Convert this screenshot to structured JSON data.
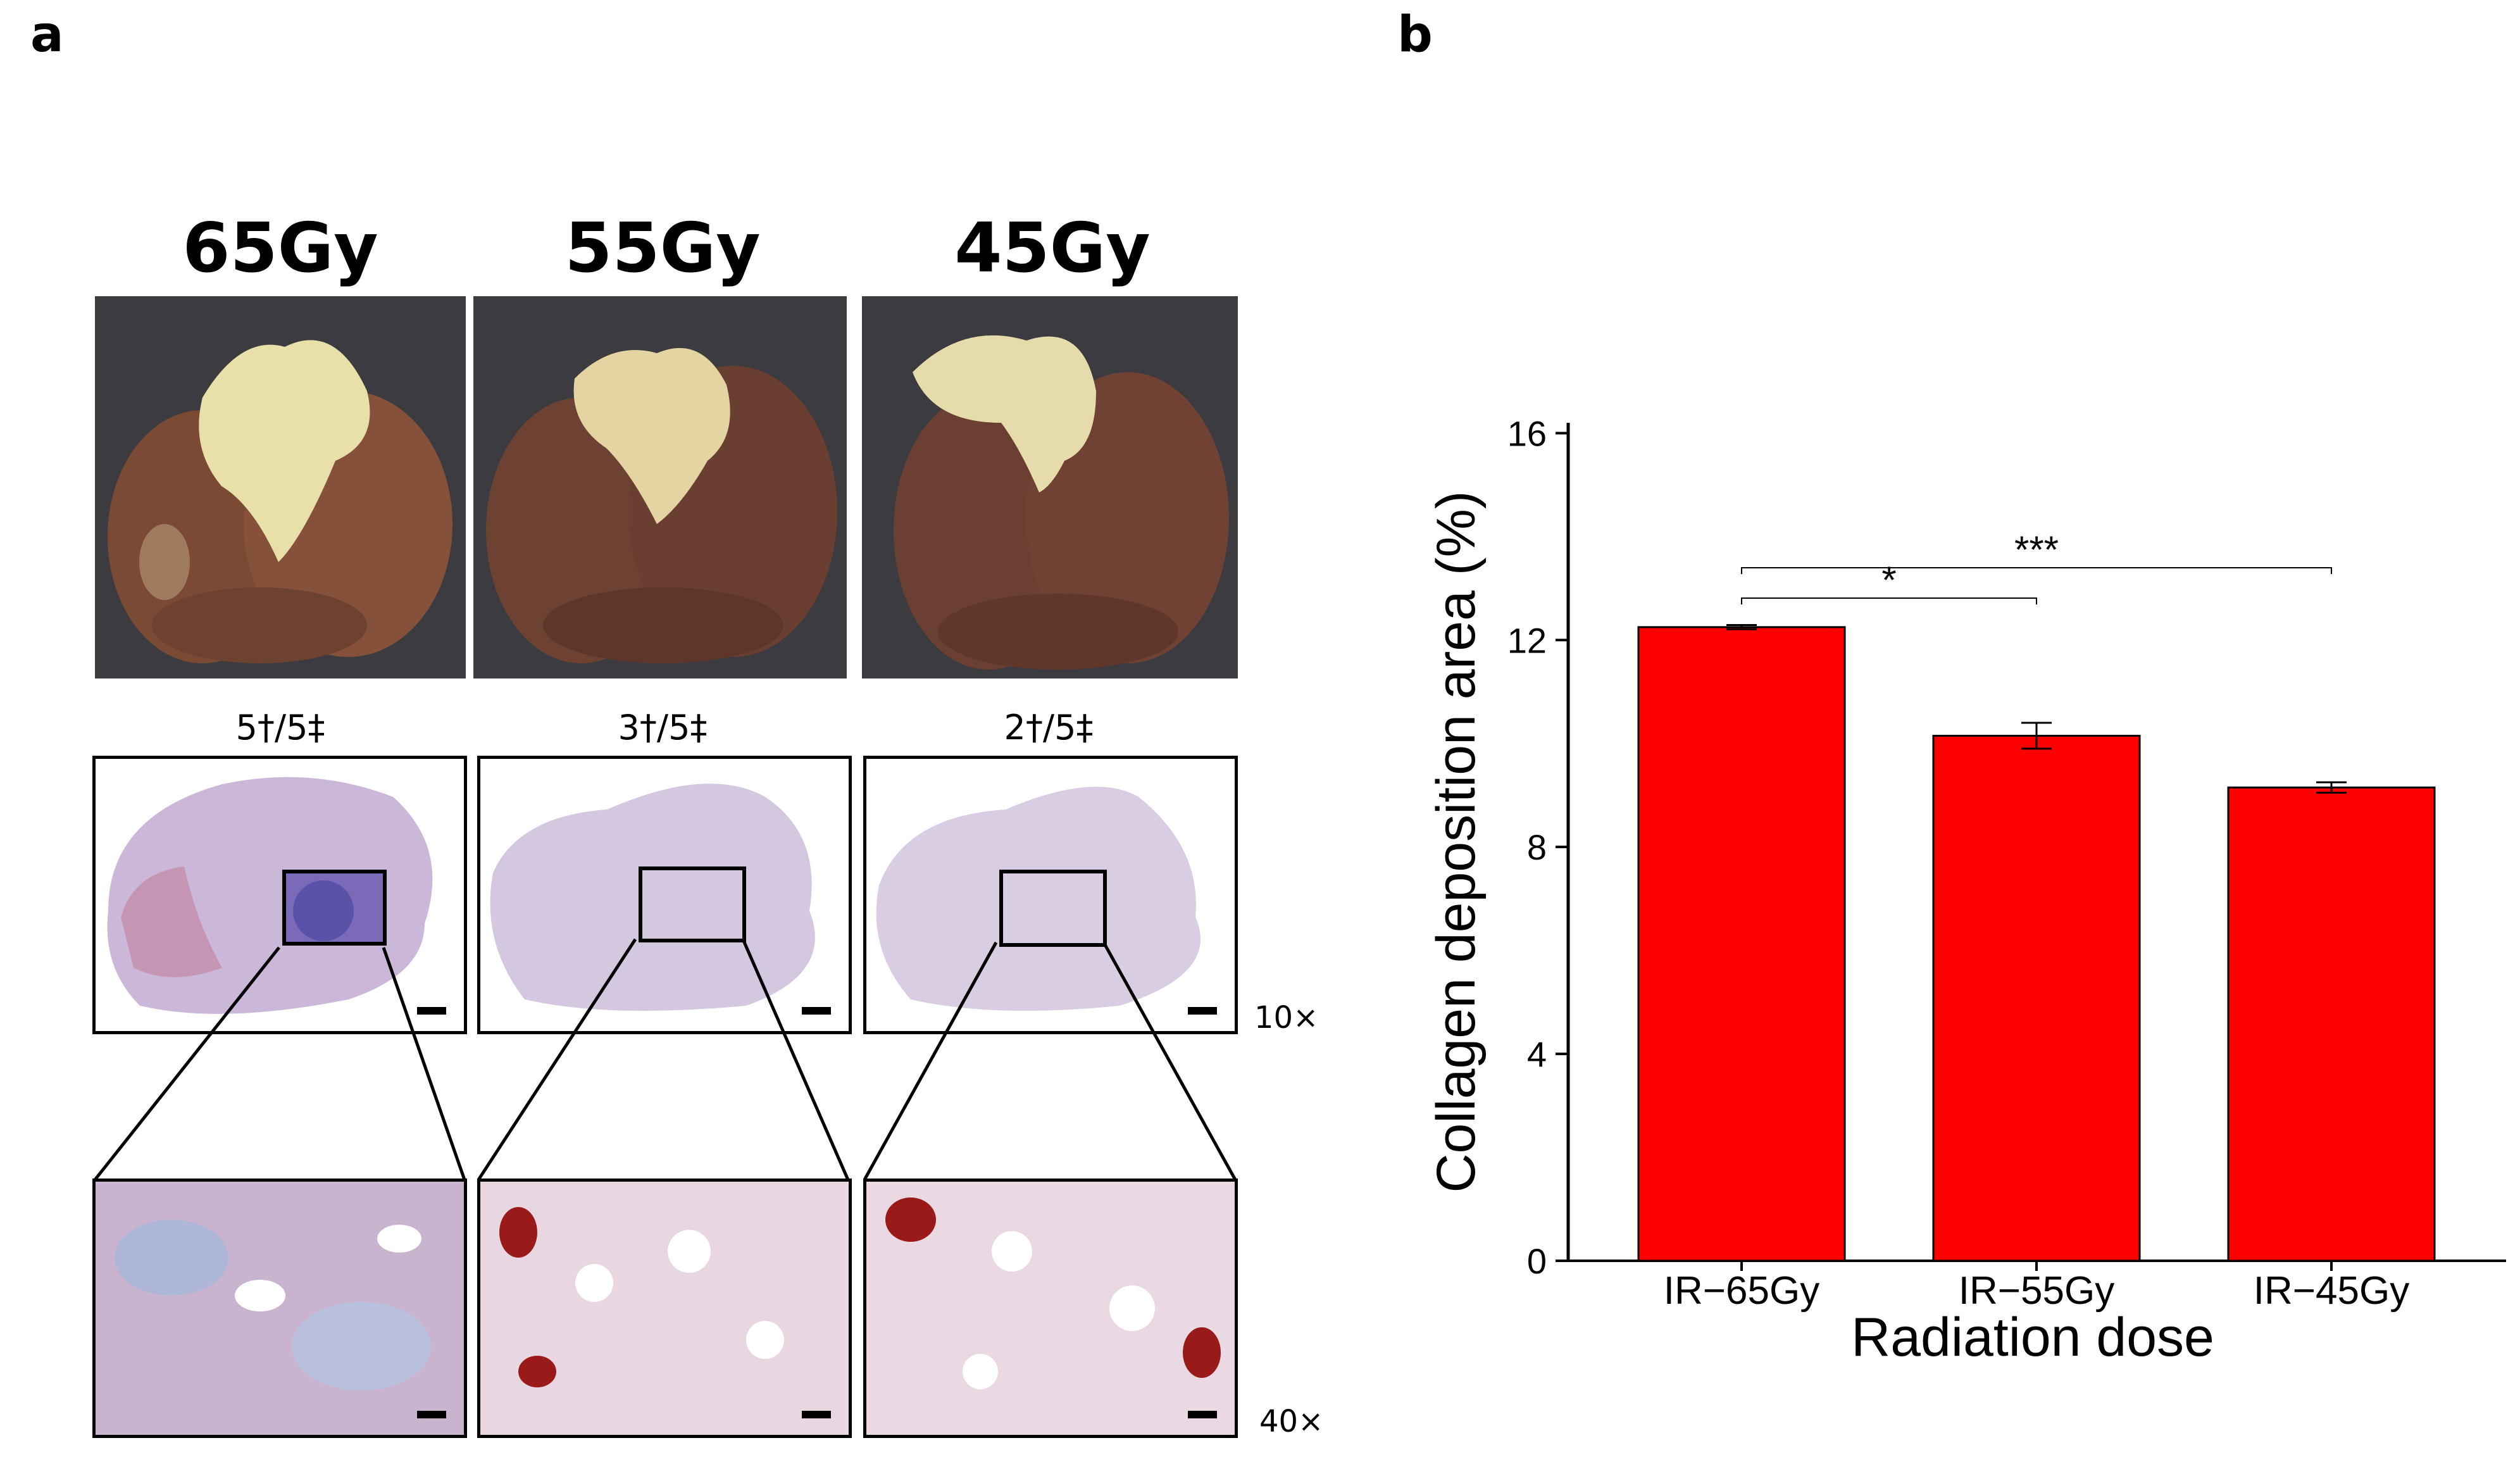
{
  "panels": {
    "a_label": "a",
    "b_label": "b"
  },
  "panel_a": {
    "columns": [
      {
        "dose": "65Gy",
        "survival": "5†/5‡"
      },
      {
        "dose": "55Gy",
        "survival": "3†/5‡"
      },
      {
        "dose": "45Gy",
        "survival": "2†/5‡"
      }
    ],
    "magnification_low": "10×",
    "magnification_high": "40×"
  },
  "chart_data": {
    "type": "bar",
    "title": "",
    "xlabel": "Radiation dose",
    "ylabel": "Collagen deposition area (%)",
    "categories": [
      "IR−65Gy",
      "IR−55Gy",
      "IR−45Gy"
    ],
    "values": [
      12.25,
      10.15,
      9.15
    ],
    "errors": [
      0.04,
      0.25,
      0.1
    ],
    "ylim": [
      0,
      16.2
    ],
    "yticks": [
      0,
      4,
      8,
      12,
      16
    ],
    "grid": false,
    "bar_color": "#ff0000",
    "significance": [
      {
        "from": "IR−65Gy",
        "to": "IR−55Gy",
        "label": "*"
      },
      {
        "from": "IR−65Gy",
        "to": "IR−45Gy",
        "label": "***"
      }
    ]
  }
}
